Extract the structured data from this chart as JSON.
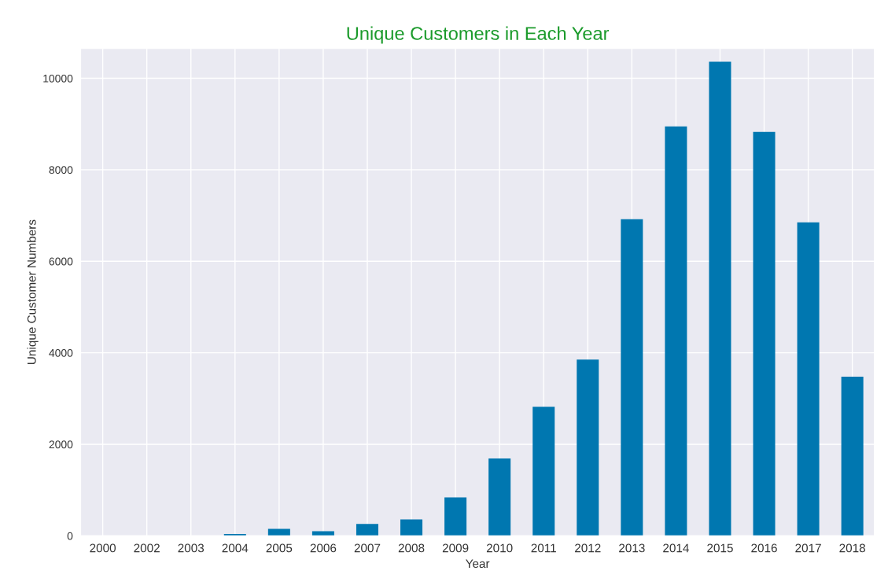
{
  "chart_data": {
    "type": "bar",
    "title": "Unique Customers in Each Year",
    "xlabel": "Year",
    "ylabel": "Unique Customer Numbers",
    "categories": [
      "2000",
      "2002",
      "2003",
      "2004",
      "2005",
      "2006",
      "2007",
      "2008",
      "2009",
      "2010",
      "2011",
      "2012",
      "2013",
      "2014",
      "2015",
      "2016",
      "2017",
      "2018"
    ],
    "values": [
      0,
      0,
      0,
      40,
      150,
      100,
      260,
      360,
      840,
      1690,
      2820,
      3850,
      6920,
      8950,
      10360,
      8830,
      6850,
      3480
    ],
    "color": "#0077b0",
    "ylim": [
      0,
      10650
    ],
    "yticks": [
      0,
      2000,
      4000,
      6000,
      8000,
      10000
    ],
    "grid": true
  }
}
